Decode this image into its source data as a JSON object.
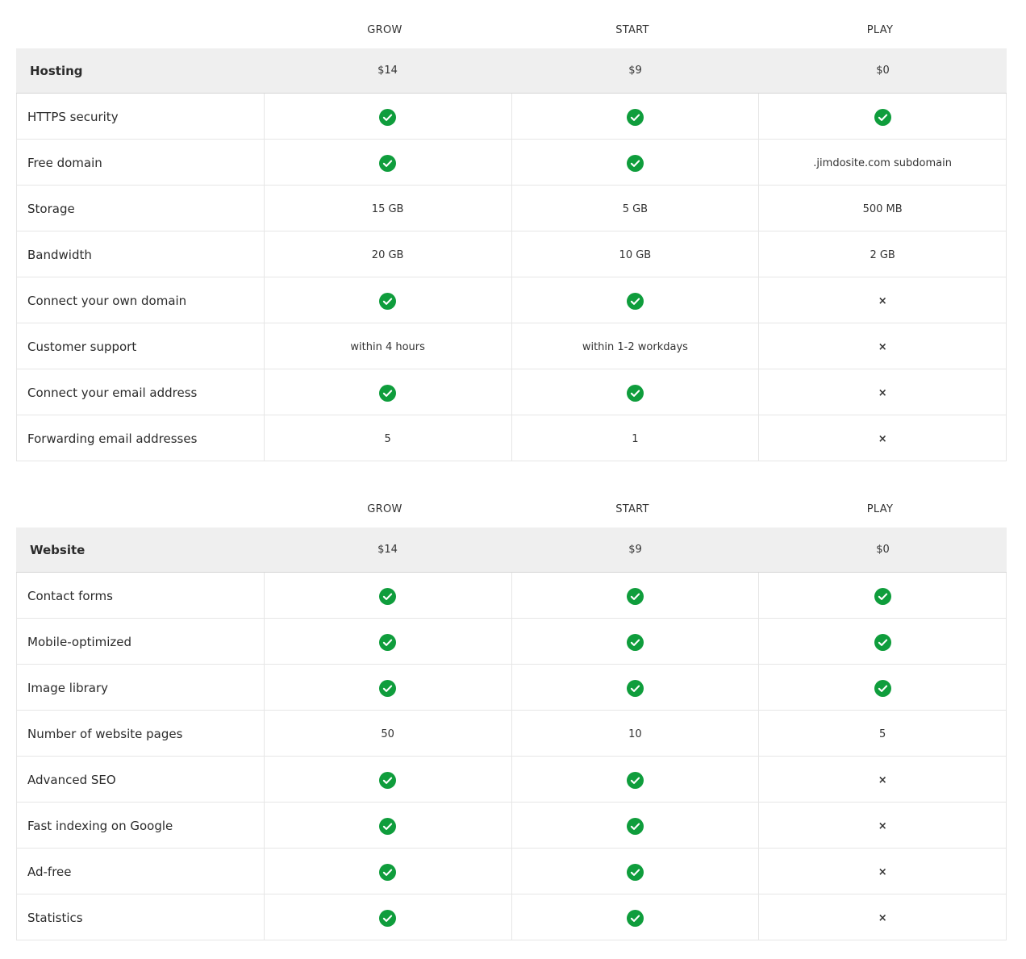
{
  "colors": {
    "check": "#0f9d3c",
    "header_bg": "#efefef",
    "border": "#e6e6e6"
  },
  "sections": [
    {
      "plans": [
        "GROW",
        "START",
        "PLAY"
      ],
      "category": "Hosting",
      "prices": [
        "$14",
        "$9",
        "$0"
      ],
      "rows": [
        {
          "label": "HTTPS security",
          "values": [
            "check",
            "check",
            "check"
          ]
        },
        {
          "label": "Free domain",
          "values": [
            "check",
            "check",
            ".jimdosite.com subdomain"
          ]
        },
        {
          "label": "Storage",
          "values": [
            "15 GB",
            "5 GB",
            "500 MB"
          ]
        },
        {
          "label": "Bandwidth",
          "values": [
            "20 GB",
            "10 GB",
            "2 GB"
          ]
        },
        {
          "label": "Connect your own domain",
          "values": [
            "check",
            "check",
            "cross"
          ]
        },
        {
          "label": "Customer support",
          "values": [
            "within 4 hours",
            "within 1-2 workdays",
            "cross"
          ]
        },
        {
          "label": "Connect your email address",
          "values": [
            "check",
            "check",
            "cross"
          ]
        },
        {
          "label": "Forwarding email addresses",
          "values": [
            "5",
            "1",
            "cross"
          ]
        }
      ]
    },
    {
      "plans": [
        "GROW",
        "START",
        "PLAY"
      ],
      "category": "Website",
      "prices": [
        "$14",
        "$9",
        "$0"
      ],
      "rows": [
        {
          "label": "Contact forms",
          "values": [
            "check",
            "check",
            "check"
          ]
        },
        {
          "label": "Mobile-optimized",
          "values": [
            "check",
            "check",
            "check"
          ]
        },
        {
          "label": "Image library",
          "values": [
            "check",
            "check",
            "check"
          ]
        },
        {
          "label": "Number of website pages",
          "values": [
            "50",
            "10",
            "5"
          ]
        },
        {
          "label": "Advanced SEO",
          "values": [
            "check",
            "check",
            "cross"
          ]
        },
        {
          "label": "Fast indexing on Google",
          "values": [
            "check",
            "check",
            "cross"
          ]
        },
        {
          "label": "Ad-free",
          "values": [
            "check",
            "check",
            "cross"
          ]
        },
        {
          "label": "Statistics",
          "values": [
            "check",
            "check",
            "cross"
          ]
        }
      ]
    }
  ]
}
